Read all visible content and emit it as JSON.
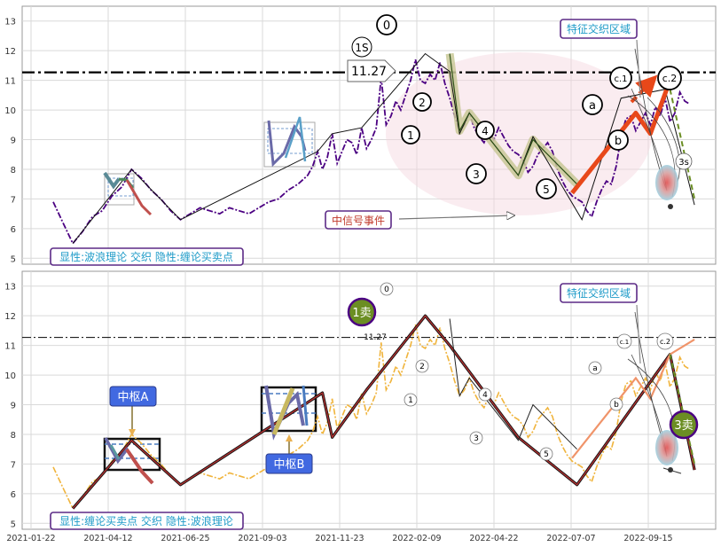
{
  "chart_data": [
    {
      "type": "line",
      "panel": "top",
      "ylim": [
        4.8,
        13.5
      ],
      "yticks": [
        5,
        6,
        7,
        8,
        9,
        10,
        11,
        12,
        13
      ],
      "grid": true,
      "hline": {
        "value": 11.27,
        "label": "11.27"
      },
      "series": [
        {
          "values": [
            [
              0,
              6.9
            ],
            [
              4,
              6.2
            ],
            [
              8,
              5.5
            ],
            [
              12,
              5.9
            ],
            [
              16,
              6.4
            ],
            [
              20,
              6.6
            ],
            [
              24,
              7.1
            ],
            [
              28,
              7.4
            ],
            [
              32,
              8.0
            ],
            [
              36,
              7.7
            ],
            [
              40,
              7.3
            ],
            [
              44,
              7.0
            ],
            [
              48,
              6.6
            ],
            [
              52,
              6.3
            ],
            [
              56,
              6.5
            ],
            [
              60,
              6.7
            ],
            [
              64,
              6.6
            ],
            [
              68,
              6.5
            ],
            [
              72,
              6.7
            ],
            [
              76,
              6.6
            ],
            [
              80,
              6.5
            ],
            [
              84,
              6.7
            ],
            [
              88,
              6.9
            ],
            [
              92,
              7.0
            ],
            [
              96,
              7.3
            ],
            [
              100,
              7.5
            ],
            [
              104,
              7.8
            ],
            [
              106,
              8.1
            ],
            [
              108,
              8.6
            ],
            [
              110,
              8.0
            ],
            [
              112,
              8.4
            ],
            [
              114,
              9.2
            ],
            [
              116,
              8.2
            ],
            [
              118,
              8.6
            ],
            [
              120,
              9.0
            ],
            [
              122,
              8.9
            ],
            [
              124,
              8.5
            ],
            [
              126,
              9.4
            ],
            [
              128,
              8.7
            ],
            [
              130,
              9.0
            ],
            [
              132,
              9.4
            ],
            [
              134,
              11.1
            ],
            [
              136,
              9.5
            ],
            [
              138,
              9.8
            ],
            [
              140,
              10.3
            ],
            [
              142,
              10.0
            ],
            [
              144,
              10.5
            ],
            [
              146,
              11.0
            ],
            [
              148,
              11.7
            ],
            [
              150,
              11.0
            ],
            [
              152,
              10.9
            ],
            [
              154,
              11.2
            ],
            [
              156,
              11.0
            ],
            [
              158,
              11.6
            ],
            [
              160,
              10.9
            ],
            [
              162,
              10.4
            ],
            [
              164,
              9.8
            ],
            [
              166,
              9.3
            ],
            [
              168,
              9.5
            ],
            [
              170,
              9.9
            ],
            [
              172,
              9.4
            ],
            [
              174,
              9.1
            ],
            [
              176,
              8.9
            ],
            [
              178,
              9.3
            ],
            [
              180,
              9.0
            ],
            [
              182,
              9.4
            ],
            [
              184,
              9.1
            ],
            [
              186,
              8.8
            ],
            [
              188,
              8.6
            ],
            [
              190,
              8.5
            ],
            [
              192,
              8.3
            ],
            [
              194,
              7.9
            ],
            [
              196,
              8.1
            ],
            [
              198,
              8.5
            ],
            [
              200,
              8.7
            ],
            [
              202,
              8.9
            ],
            [
              204,
              8.6
            ],
            [
              206,
              8.0
            ],
            [
              208,
              7.6
            ],
            [
              210,
              7.3
            ],
            [
              212,
              7.1
            ],
            [
              214,
              7.0
            ],
            [
              216,
              6.9
            ],
            [
              218,
              6.6
            ],
            [
              220,
              6.4
            ],
            [
              222,
              6.9
            ],
            [
              224,
              7.3
            ],
            [
              226,
              7.6
            ],
            [
              228,
              7.5
            ],
            [
              230,
              8.1
            ],
            [
              232,
              9.1
            ],
            [
              234,
              9.7
            ],
            [
              236,
              9.8
            ],
            [
              238,
              9.3
            ],
            [
              240,
              9.6
            ],
            [
              242,
              9.9
            ],
            [
              244,
              9.5
            ],
            [
              246,
              10.1
            ],
            [
              248,
              9.8
            ],
            [
              250,
              10.4
            ],
            [
              252,
              9.6
            ],
            [
              254,
              9.9
            ],
            [
              256,
              10.6
            ],
            [
              258,
              10.3
            ],
            [
              260,
              10.2
            ]
          ]
        },
        {
          "values": [
            [
              8,
              5.5
            ],
            [
              32,
              8.0
            ],
            [
              52,
              6.3
            ],
            [
              108,
              8.6
            ],
            [
              114,
              9.2
            ],
            [
              126,
              9.4
            ],
            [
              152,
              11.9
            ],
            [
              162,
              11.3
            ],
            [
              166,
              9.2
            ],
            [
              170,
              9.9
            ],
            [
              190,
              7.8
            ],
            [
              196,
              9.1
            ],
            [
              216,
              6.3
            ],
            [
              232,
              10.4
            ],
            [
              250,
              10.7
            ],
            [
              262,
              6.8
            ]
          ]
        },
        {
          "values": [
            [
              162,
              11.9
            ],
            [
              166,
              9.3
            ],
            [
              170,
              9.9
            ],
            [
              190,
              7.8
            ],
            [
              196,
              9.0
            ],
            [
              214,
              7.5
            ]
          ]
        },
        {
          "values": [
            [
              212,
              7.2
            ],
            [
              238,
              9.9
            ],
            [
              244,
              9.2
            ],
            [
              252,
              11.0
            ]
          ]
        },
        {
          "values": [
            [
              252,
              10.7
            ],
            [
              262,
              7.0
            ]
          ]
        }
      ],
      "labels": [
        "0",
        "1S",
        "1",
        "2",
        "3",
        "4",
        "5",
        "a",
        "b",
        "c.1",
        "c.2",
        "3s"
      ],
      "annotations": [
        "特征交织区域",
        "中信号事件",
        "显性:波浪理论 交织 隐性:缠论买卖点"
      ]
    },
    {
      "type": "line",
      "panel": "bottom",
      "ylim": [
        4.8,
        13.5
      ],
      "yticks": [
        5,
        6,
        7,
        8,
        9,
        10,
        11,
        12,
        13
      ],
      "x_tick_labels": [
        "2021-01-22",
        "2021-04-12",
        "2021-06-25",
        "2021-09-03",
        "2021-11-23",
        "2022-02-09",
        "2022-04-22",
        "2022-07-07",
        "2022-09-15"
      ],
      "grid": true,
      "hline": {
        "value": 11.27,
        "label": "11.27"
      },
      "series": [
        {
          "values": [
            [
              0,
              6.9
            ],
            [
              4,
              6.2
            ],
            [
              8,
              5.5
            ],
            [
              12,
              5.9
            ],
            [
              16,
              6.4
            ],
            [
              20,
              6.6
            ],
            [
              24,
              7.1
            ],
            [
              28,
              7.4
            ],
            [
              32,
              8.0
            ],
            [
              36,
              7.7
            ],
            [
              40,
              7.3
            ],
            [
              44,
              7.0
            ],
            [
              48,
              6.6
            ],
            [
              52,
              6.3
            ],
            [
              56,
              6.5
            ],
            [
              60,
              6.7
            ],
            [
              64,
              6.6
            ],
            [
              68,
              6.5
            ],
            [
              72,
              6.7
            ],
            [
              76,
              6.6
            ],
            [
              80,
              6.5
            ],
            [
              84,
              6.7
            ],
            [
              88,
              6.9
            ],
            [
              92,
              7.0
            ],
            [
              96,
              7.3
            ],
            [
              100,
              7.5
            ],
            [
              104,
              7.8
            ],
            [
              106,
              8.1
            ],
            [
              108,
              8.6
            ],
            [
              110,
              8.0
            ],
            [
              112,
              8.4
            ],
            [
              114,
              9.2
            ],
            [
              116,
              8.2
            ],
            [
              118,
              8.6
            ],
            [
              120,
              9.0
            ],
            [
              122,
              8.9
            ],
            [
              124,
              8.5
            ],
            [
              126,
              9.4
            ],
            [
              128,
              8.7
            ],
            [
              130,
              9.0
            ],
            [
              132,
              9.4
            ],
            [
              134,
              11.1
            ],
            [
              136,
              9.5
            ],
            [
              138,
              9.8
            ],
            [
              140,
              10.3
            ],
            [
              142,
              10.0
            ],
            [
              144,
              10.5
            ],
            [
              146,
              11.0
            ],
            [
              148,
              11.7
            ],
            [
              150,
              11.0
            ],
            [
              152,
              10.9
            ],
            [
              154,
              11.2
            ],
            [
              156,
              11.0
            ],
            [
              158,
              11.6
            ],
            [
              160,
              10.9
            ],
            [
              162,
              10.4
            ],
            [
              164,
              9.8
            ],
            [
              166,
              9.3
            ],
            [
              168,
              9.5
            ],
            [
              170,
              9.9
            ],
            [
              172,
              9.4
            ],
            [
              174,
              9.1
            ],
            [
              176,
              8.9
            ],
            [
              178,
              9.3
            ],
            [
              180,
              9.0
            ],
            [
              182,
              9.4
            ],
            [
              184,
              9.1
            ],
            [
              186,
              8.8
            ],
            [
              188,
              8.6
            ],
            [
              190,
              8.5
            ],
            [
              192,
              8.3
            ],
            [
              194,
              7.9
            ],
            [
              196,
              8.1
            ],
            [
              198,
              8.5
            ],
            [
              200,
              8.7
            ],
            [
              202,
              8.9
            ],
            [
              204,
              8.6
            ],
            [
              206,
              8.0
            ],
            [
              208,
              7.6
            ],
            [
              210,
              7.3
            ],
            [
              212,
              7.1
            ],
            [
              214,
              7.0
            ],
            [
              216,
              6.9
            ],
            [
              218,
              6.6
            ],
            [
              220,
              6.4
            ],
            [
              222,
              6.9
            ],
            [
              224,
              7.3
            ],
            [
              226,
              7.6
            ],
            [
              228,
              7.5
            ],
            [
              230,
              8.1
            ],
            [
              232,
              9.1
            ],
            [
              234,
              9.7
            ],
            [
              236,
              9.8
            ],
            [
              238,
              9.3
            ],
            [
              240,
              9.6
            ],
            [
              242,
              9.9
            ],
            [
              244,
              9.5
            ],
            [
              246,
              10.1
            ],
            [
              248,
              9.8
            ],
            [
              250,
              10.4
            ],
            [
              252,
              9.6
            ],
            [
              254,
              9.9
            ],
            [
              256,
              10.6
            ],
            [
              258,
              10.3
            ],
            [
              260,
              10.2
            ]
          ]
        },
        {
          "values": [
            [
              8,
              5.5
            ],
            [
              32,
              7.8
            ],
            [
              52,
              6.3
            ],
            [
              110,
              9.4
            ],
            [
              114,
              7.9
            ],
            [
              128,
              9.5
            ],
            [
              152,
              12.0
            ],
            [
              162,
              11.0
            ],
            [
              190,
              7.9
            ],
            [
              214,
              6.3
            ],
            [
              252,
              10.7
            ],
            [
              262,
              6.8
            ]
          ]
        },
        {
          "values": [
            [
              162,
              11.9
            ],
            [
              166,
              9.3
            ],
            [
              170,
              9.9
            ],
            [
              190,
              7.8
            ],
            [
              196,
              9.0
            ],
            [
              214,
              7.5
            ]
          ]
        },
        {
          "values": [
            [
              212,
              7.2
            ],
            [
              238,
              9.9
            ],
            [
              244,
              9.2
            ],
            [
              252,
              10.7
            ],
            [
              262,
              11.2
            ]
          ]
        },
        {
          "values": [
            [
              252,
              10.7
            ],
            [
              262,
              7.0
            ]
          ]
        }
      ],
      "labels": [
        "0",
        "1",
        "2",
        "3",
        "4",
        "5",
        "a",
        "b",
        "c.1",
        "c.2",
        "1卖",
        "3卖"
      ],
      "annotations": [
        "中枢A",
        "中枢B",
        "特征交织区域",
        "显性:缠论买卖点 交织 隐性:波浪理论"
      ]
    }
  ],
  "colors": {
    "price_top": "#4B0082",
    "price_bottom": "#F0B43C",
    "accent_orange": "#E8481A",
    "wave_band": "#C8C896",
    "zhongshu_green": "#6B8E23",
    "annotation_border": "#5B2A86",
    "annotation_text": "#1E9BC8",
    "red_text": "#C0392B",
    "button_blue": "#4169E1"
  }
}
